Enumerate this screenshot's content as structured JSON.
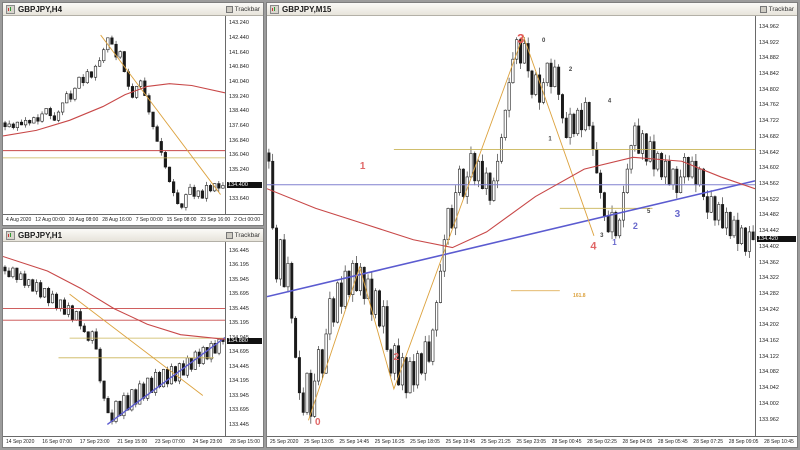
{
  "app": {
    "name": "trading-terminal",
    "background": "#9c9c9c"
  },
  "windows": [
    {
      "title": "GBPJPY,H4",
      "trackbar": "Trackbar"
    },
    {
      "title": "GBPJPY,H1",
      "trackbar": "Trackbar"
    },
    {
      "title": "GBPJPY,M15",
      "trackbar": "Trackbar"
    }
  ],
  "colors": {
    "ma_red": "#c84848",
    "trend_orange": "#dca23e",
    "level_yellow": "#c9b457",
    "trend_blue": "#5b5bd0",
    "level_blue": "#8080cf",
    "wave_red": "#e06666",
    "wave_blue": "#6868cc",
    "wave_black": "#444444",
    "candle": "#1a1a1a"
  },
  "chart_data": [
    {
      "type": "candlestick",
      "symbol": "GBPJPY",
      "timeframe": "H4",
      "axis": {
        "min": 132.84,
        "max": 143.64
      },
      "closes": [
        137.6,
        137.75,
        137.55,
        137.85,
        137.7,
        137.95,
        137.8,
        138.1,
        137.9,
        138.3,
        138.6,
        138.2,
        137.95,
        138.4,
        138.9,
        139.4,
        139.1,
        139.7,
        140.3,
        140.0,
        140.6,
        140.3,
        140.9,
        141.2,
        141.8,
        142.45,
        142.1,
        141.4,
        141.7,
        140.6,
        139.8,
        139.2,
        139.8,
        140.1,
        139.3,
        138.4,
        137.6,
        136.8,
        136.2,
        135.4,
        134.6,
        134.0,
        133.4,
        133.2,
        133.9,
        134.3,
        133.8,
        134.1,
        133.7,
        134.4,
        134.1,
        134.5,
        134.25,
        134.4
      ],
      "ma": [
        [
          0,
          137.1
        ],
        [
          0.15,
          137.4
        ],
        [
          0.3,
          137.95
        ],
        [
          0.45,
          138.7
        ],
        [
          0.55,
          139.35
        ],
        [
          0.65,
          139.8
        ],
        [
          0.75,
          139.95
        ],
        [
          0.85,
          139.85
        ],
        [
          1,
          139.45
        ]
      ],
      "lines": [
        {
          "p": 136.3,
          "x1": 0,
          "x2": 1,
          "c": "#c84848",
          "w": 1
        },
        {
          "p": 135.9,
          "x1": 0,
          "x2": 1,
          "c": "#c9b457",
          "w": 0.8
        },
        {
          "pts": [
            [
              0.44,
              142.6
            ],
            [
              0.98,
              133.9
            ]
          ],
          "c": "#dca23e",
          "w": 0.9
        }
      ],
      "annotations": [],
      "price_labels": [
        "143.240",
        "142.440",
        "141.640",
        "140.840",
        "140.040",
        "139.240",
        "138.440",
        "137.640",
        "136.840",
        "136.040",
        "135.240",
        "134.440",
        "133.640"
      ],
      "price_box": {
        "text": "134.400",
        "p": 134.4
      },
      "time_labels": [
        "4 Aug 2020",
        "12 Aug 00:00",
        "20 Aug 08:00",
        "28 Aug 16:00",
        "7 Sep 00:00",
        "15 Sep 08:00",
        "23 Sep 16:00",
        "2 Oct 00:00"
      ]
    },
    {
      "type": "candlestick",
      "symbol": "GBPJPY",
      "timeframe": "H1",
      "axis": {
        "min": 133.25,
        "max": 136.6
      },
      "closes": [
        136.1,
        136.0,
        136.15,
        135.95,
        136.05,
        135.85,
        135.95,
        135.75,
        135.9,
        135.65,
        135.8,
        135.55,
        135.7,
        135.45,
        135.6,
        135.35,
        135.5,
        135.25,
        135.4,
        135.15,
        135.05,
        134.9,
        135.05,
        134.75,
        134.2,
        133.9,
        133.65,
        133.5,
        133.85,
        133.6,
        133.95,
        133.7,
        134.05,
        133.8,
        134.15,
        133.9,
        134.25,
        134.0,
        134.35,
        134.1,
        134.4,
        134.15,
        134.45,
        134.2,
        134.5,
        134.3,
        134.6,
        134.4,
        134.7,
        134.5,
        134.78,
        134.58,
        134.85,
        134.68,
        134.92,
        134.88
      ],
      "ma": [
        [
          0,
          136.35
        ],
        [
          0.2,
          136.1
        ],
        [
          0.35,
          135.8
        ],
        [
          0.5,
          135.45
        ],
        [
          0.65,
          135.18
        ],
        [
          0.8,
          135.0
        ],
        [
          1,
          134.92
        ]
      ],
      "lines": [
        {
          "p": 135.45,
          "x1": 0,
          "x2": 1,
          "c": "#c84848",
          "w": 0.9
        },
        {
          "p": 135.25,
          "x1": 0,
          "x2": 1,
          "c": "#c84848",
          "w": 0.9
        },
        {
          "p": 134.94,
          "x1": 0.3,
          "x2": 1,
          "c": "#c9b457",
          "w": 0.8
        },
        {
          "p": 134.6,
          "x1": 0.25,
          "x2": 0.95,
          "c": "#c9b457",
          "w": 0.8
        },
        {
          "pts": [
            [
              0.3,
              135.7
            ],
            [
              0.9,
              133.95
            ]
          ],
          "c": "#dca23e",
          "w": 0.9
        },
        {
          "pts": [
            [
              0.47,
              133.45
            ],
            [
              1,
              134.95
            ]
          ],
          "c": "#5b5bd0",
          "w": 1.4
        }
      ],
      "annotations": [],
      "price_labels": [
        "136.445",
        "136.195",
        "135.945",
        "135.695",
        "135.445",
        "135.195",
        "134.945",
        "134.695",
        "134.445",
        "134.195",
        "133.945",
        "133.695",
        "133.445"
      ],
      "price_box": {
        "text": "134.880",
        "p": 134.88
      },
      "time_labels": [
        "14 Sep 2020",
        "16 Sep 07:00",
        "17 Sep 23:00",
        "21 Sep 15:00",
        "23 Sep 07:00",
        "24 Sep 23:00",
        "28 Sep 15:00"
      ]
    },
    {
      "type": "candlestick",
      "symbol": "GBPJPY",
      "timeframe": "M15",
      "axis": {
        "min": 133.92,
        "max": 134.99
      },
      "closes": [
        134.62,
        134.45,
        134.32,
        134.42,
        134.3,
        134.36,
        134.22,
        134.12,
        134.03,
        133.98,
        134.08,
        133.97,
        134.06,
        134.14,
        134.08,
        134.18,
        134.27,
        134.21,
        134.31,
        134.25,
        134.34,
        134.28,
        134.36,
        134.29,
        134.35,
        134.27,
        134.32,
        134.23,
        134.29,
        134.2,
        134.25,
        134.14,
        134.08,
        134.15,
        134.05,
        134.12,
        134.03,
        134.11,
        134.05,
        134.13,
        134.08,
        134.16,
        134.11,
        134.19,
        134.26,
        134.34,
        134.42,
        134.5,
        134.45,
        134.54,
        134.6,
        134.53,
        134.58,
        134.64,
        134.57,
        134.62,
        134.55,
        134.59,
        134.52,
        134.57,
        134.62,
        134.68,
        134.75,
        134.82,
        134.88,
        134.93,
        134.87,
        134.92,
        134.85,
        134.79,
        134.84,
        134.77,
        134.82,
        134.87,
        134.81,
        134.86,
        134.79,
        134.73,
        134.68,
        134.74,
        134.69,
        134.75,
        134.7,
        134.77,
        134.71,
        134.65,
        134.59,
        134.54,
        134.48,
        134.44,
        134.49,
        134.43,
        134.47,
        134.54,
        134.6,
        134.66,
        134.71,
        134.64,
        134.69,
        134.62,
        134.67,
        134.6,
        134.64,
        134.58,
        134.62,
        134.56,
        134.6,
        134.54,
        134.58,
        134.63,
        134.58,
        134.62,
        134.56,
        134.6,
        134.53,
        134.49,
        134.53,
        134.47,
        134.51,
        134.45,
        134.49,
        134.43,
        134.47,
        134.41,
        134.45,
        134.39,
        134.44,
        134.42
      ],
      "ma": [
        [
          0,
          134.55
        ],
        [
          0.1,
          134.5
        ],
        [
          0.2,
          134.46
        ],
        [
          0.3,
          134.42
        ],
        [
          0.38,
          134.4
        ],
        [
          0.45,
          134.44
        ],
        [
          0.55,
          134.53
        ],
        [
          0.65,
          134.6
        ],
        [
          0.75,
          134.63
        ],
        [
          0.85,
          134.62
        ],
        [
          0.93,
          134.58
        ],
        [
          1,
          134.55
        ]
      ],
      "lines": [
        {
          "p": 134.65,
          "x1": 0.26,
          "x2": 1,
          "c": "#c9b457",
          "w": 0.9
        },
        {
          "p": 134.5,
          "x1": 0.6,
          "x2": 0.79,
          "c": "#c9b457",
          "w": 0.9
        },
        {
          "p": 134.56,
          "x1": 0,
          "x2": 1,
          "c": "#8080cf",
          "w": 1
        },
        {
          "p": 134.29,
          "x1": 0.5,
          "x2": 0.6,
          "c": "#dca23e",
          "w": 0.8
        },
        {
          "pts": [
            [
              0,
              134.275
            ],
            [
              1,
              134.57
            ]
          ],
          "c": "#5b5bd0",
          "w": 1.6
        },
        {
          "pts": [
            [
              0.085,
              133.96
            ],
            [
              0.19,
              134.35
            ],
            [
              0.26,
              134.04
            ],
            [
              0.525,
              134.94
            ],
            [
              0.67,
              134.43
            ]
          ],
          "c": "#dca23e",
          "w": 0.9
        }
      ],
      "annotations": [
        {
          "text": "0",
          "fx": 0.104,
          "fy": 0.955,
          "c": "#e06666",
          "s": 10
        },
        {
          "text": "1",
          "fx": 0.196,
          "fy": 0.345,
          "c": "#e06666",
          "s": 10
        },
        {
          "text": "2",
          "fx": 0.265,
          "fy": 0.8,
          "c": "#e06666",
          "s": 10
        },
        {
          "text": "3",
          "fx": 0.52,
          "fy": 0.04,
          "c": "#e05555",
          "s": 13
        },
        {
          "text": "4",
          "fx": 0.669,
          "fy": 0.535,
          "c": "#e06666",
          "s": 11
        },
        {
          "text": "1",
          "fx": 0.712,
          "fy": 0.53,
          "c": "#6868cc",
          "s": 8
        },
        {
          "text": "2",
          "fx": 0.755,
          "fy": 0.49,
          "c": "#6868cc",
          "s": 9
        },
        {
          "text": "3",
          "fx": 0.841,
          "fy": 0.46,
          "c": "#6868cc",
          "s": 10
        },
        {
          "text": "0",
          "fx": 0.567,
          "fy": 0.05,
          "c": "#444444",
          "s": 6
        },
        {
          "text": "2",
          "fx": 0.622,
          "fy": 0.12,
          "c": "#444444",
          "s": 6
        },
        {
          "text": "4",
          "fx": 0.702,
          "fy": 0.195,
          "c": "#444444",
          "s": 6
        },
        {
          "text": "1",
          "fx": 0.58,
          "fy": 0.285,
          "c": "#444444",
          "s": 6
        },
        {
          "text": "3",
          "fx": 0.686,
          "fy": 0.515,
          "c": "#444444",
          "s": 6
        },
        {
          "text": "5",
          "fx": 0.782,
          "fy": 0.458,
          "c": "#444444",
          "s": 6
        },
        {
          "text": "161.8",
          "fx": 0.64,
          "fy": 0.66,
          "c": "#dca23e",
          "s": 5
        }
      ],
      "price_labels": [
        "134.962",
        "134.922",
        "134.882",
        "134.842",
        "134.802",
        "134.762",
        "134.722",
        "134.682",
        "134.642",
        "134.602",
        "134.562",
        "134.522",
        "134.482",
        "134.442",
        "134.402",
        "134.362",
        "134.322",
        "134.282",
        "134.242",
        "134.202",
        "134.162",
        "134.122",
        "134.082",
        "134.042",
        "134.002",
        "133.962"
      ],
      "price_box": {
        "text": "134.420",
        "p": 134.42
      },
      "time_labels": [
        "25 Sep 2020",
        "25 Sep 13:05",
        "25 Sep 14:45",
        "25 Sep 16:25",
        "25 Sep 18:05",
        "25 Sep 19:45",
        "25 Sep 21:25",
        "25 Sep 23:05",
        "28 Sep 00:45",
        "28 Sep 02:25",
        "28 Sep 04:05",
        "28 Sep 05:45",
        "28 Sep 07:25",
        "28 Sep 09:05",
        "28 Sep 10:45"
      ]
    }
  ]
}
